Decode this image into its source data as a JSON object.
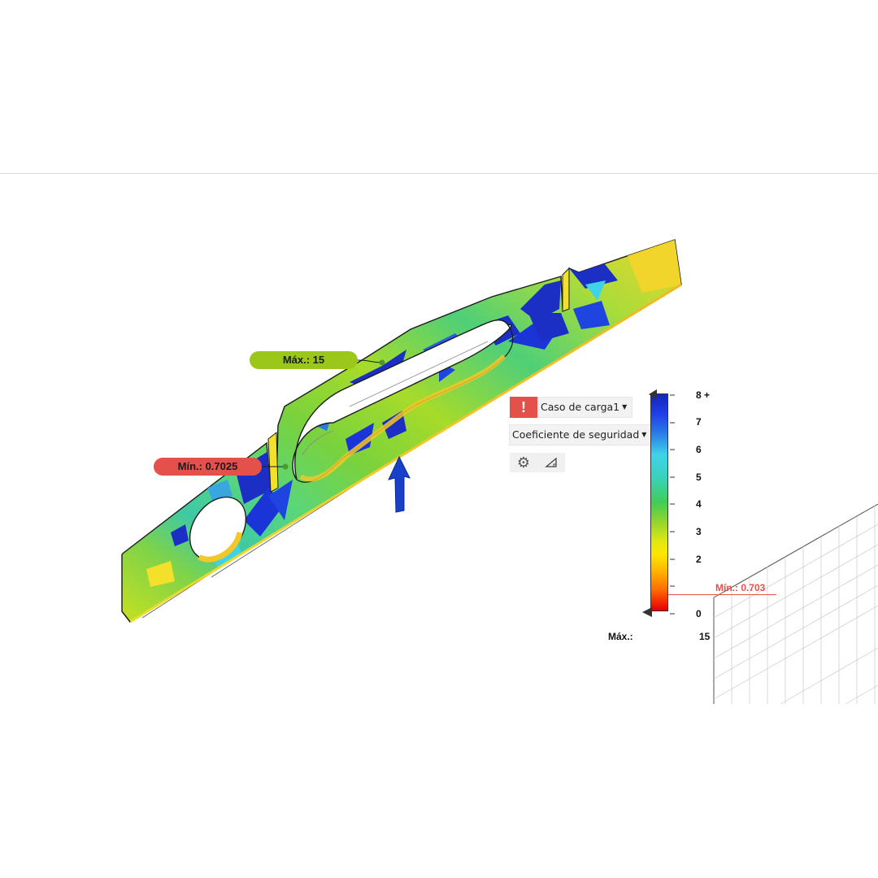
{
  "callouts": {
    "max_label": "Máx.: 15",
    "min_label": "Mín.: 0.7025"
  },
  "results_panel": {
    "warning_icon": "exclamation-icon",
    "load_case": "Caso de carga1",
    "result_type": "Coeficiente de seguridad",
    "tools": [
      "gear-icon",
      "ruler-triangle-icon"
    ]
  },
  "legend": {
    "ticks": [
      "8 +",
      "7",
      "6",
      "5",
      "4",
      "3",
      "2",
      "0"
    ],
    "min_label": "Mín.: 0.703",
    "max_label": "Máx.:",
    "max_value": "15"
  },
  "colors": {
    "max_callout": "#9bc61a",
    "min_callout": "#e4504a",
    "warning": "#e4504a",
    "load_arrow": "#1840c8"
  }
}
